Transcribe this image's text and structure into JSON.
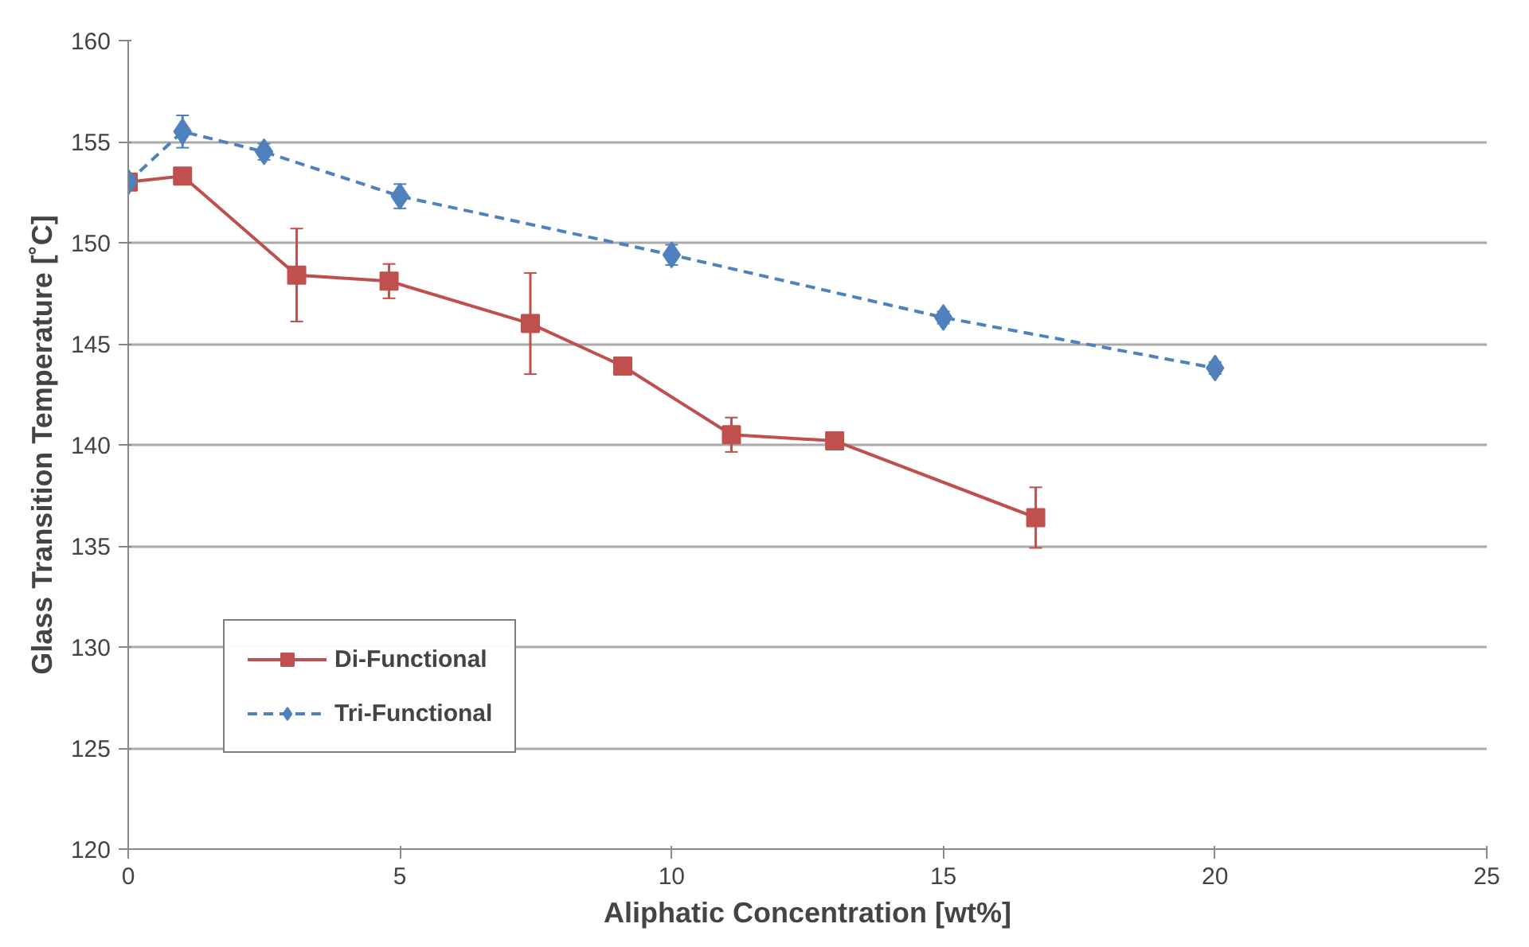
{
  "chart_data": {
    "type": "line",
    "xlabel": "Aliphatic Concentration [wt%]",
    "ylabel": "Glass Transition Temperature [˚C]",
    "xlim": [
      0,
      25
    ],
    "xticks": [
      0,
      5,
      10,
      15,
      20,
      25
    ],
    "ylim": [
      120,
      160
    ],
    "yticks": [
      120,
      125,
      130,
      135,
      140,
      145,
      150,
      155,
      160
    ],
    "grid": "y",
    "legend": "bottom left",
    "series": [
      {
        "name": "Di-Functional",
        "color": "#c0504d",
        "marker": "square",
        "line_style": "solid",
        "x": [
          0,
          1.0,
          3.1,
          4.8,
          7.4,
          9.1,
          11.1,
          13.0,
          16.7
        ],
        "values": [
          153.0,
          153.3,
          148.4,
          148.1,
          146.0,
          143.9,
          140.5,
          140.2,
          136.4
        ],
        "errors": [
          null,
          null,
          2.3,
          0.85,
          2.5,
          0.4,
          0.85,
          null,
          1.5
        ]
      },
      {
        "name": "Tri-Functional",
        "color": "#4f81bd",
        "marker": "diamond",
        "line_style": "dashed",
        "x": [
          0,
          1,
          2.5,
          5,
          10,
          15,
          20
        ],
        "values": [
          153.0,
          155.5,
          154.5,
          152.3,
          149.4,
          146.3,
          143.8
        ],
        "errors": [
          null,
          0.8,
          0.4,
          0.6,
          0.5,
          0.3,
          0.3
        ]
      }
    ]
  }
}
